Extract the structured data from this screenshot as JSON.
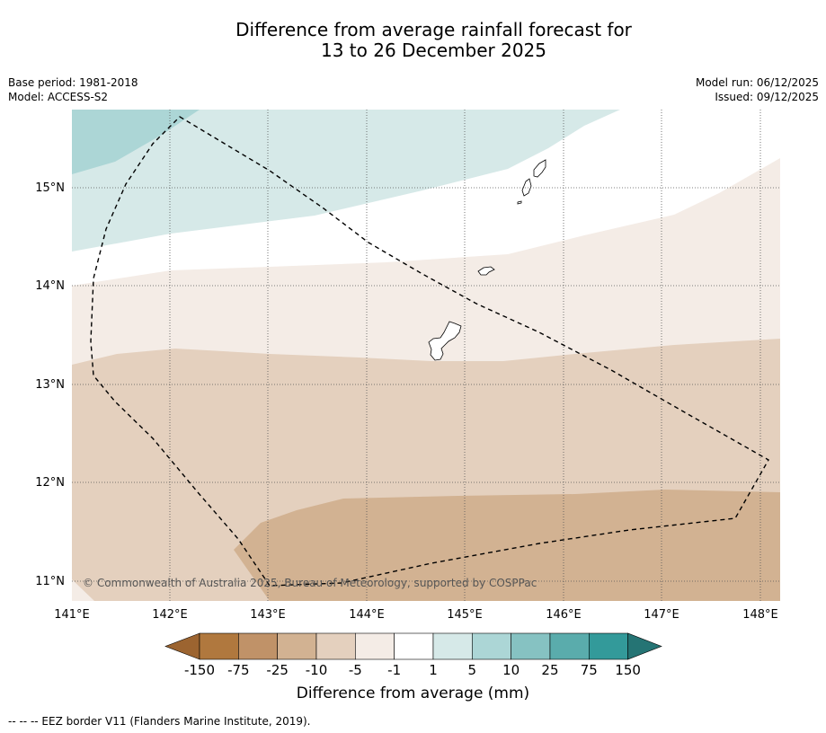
{
  "title_line1": "Difference from average rainfall forecast for",
  "title_line2": "13 to 26 December 2025",
  "base_period": "Base period: 1981-2018",
  "model": "Model: ACCESS-S2",
  "model_run": "Model run: 06/12/2025",
  "issued": "Issued: 09/12/2025",
  "copyright": "© Commonwealth of Australia 2025, Bureau of Meteorology, supported by COSPPac",
  "lat_labels": [
    "15°N",
    "14°N",
    "13°N",
    "12°N",
    "11°N"
  ],
  "lon_labels": [
    "141°E",
    "142°E",
    "143°E",
    "144°E",
    "145°E",
    "146°E",
    "147°E",
    "148°E"
  ],
  "colorbar": {
    "label": "Difference from average (mm)",
    "ticks": [
      "-150",
      "-75",
      "-25",
      "-10",
      "-5",
      "-1",
      "1",
      "5",
      "10",
      "25",
      "75",
      "150"
    ],
    "colors": [
      "#9c6430",
      "#b0783e",
      "#c09268",
      "#d2b292",
      "#e4d0be",
      "#f4ece6",
      "#ffffff",
      "#d6e9e8",
      "#acd6d6",
      "#86c2c2",
      "#5aacac",
      "#339a9a",
      "#257474"
    ]
  },
  "footnote": "--  --  -- EEZ border V11 (Flanders Marine Institute, 2019)."
}
